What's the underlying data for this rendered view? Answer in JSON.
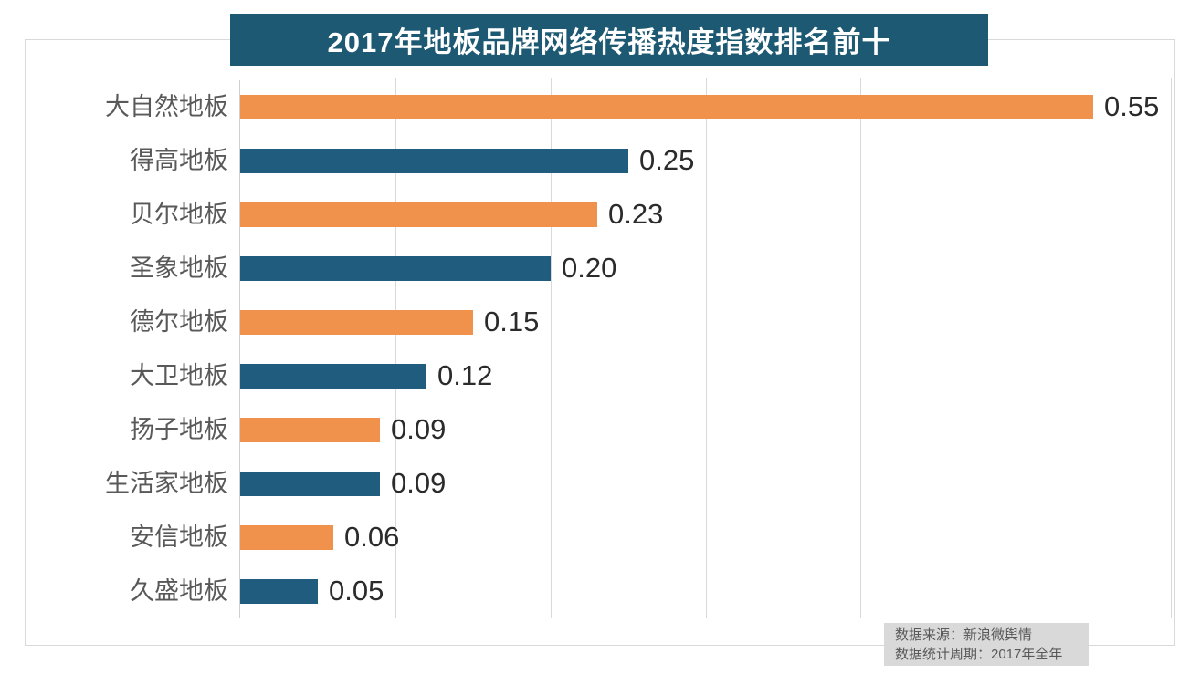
{
  "title": "2017年地板品牌网络传播热度指数排名前十",
  "source": {
    "line1": "数据来源：新浪微舆情",
    "line2": "数据统计周期：2017年全年"
  },
  "colors": {
    "banner_bg": "#1D5972",
    "title_text": "#FFFFFF",
    "bar_orange": "#F0924C",
    "bar_blue": "#1F5C7E",
    "grid_line": "#D9D9D9",
    "frame_border": "#D9D9D9",
    "category_label": "#595959",
    "value_label": "#2B2B2B",
    "source_bg": "#D9D9D9",
    "source_text": "#595959"
  },
  "chart_data": {
    "type": "bar",
    "orientation": "horizontal",
    "title": "2017年地板品牌网络传播热度指数排名前十",
    "categories": [
      "大自然地板",
      "得高地板",
      "贝尔地板",
      "圣象地板",
      "德尔地板",
      "大卫地板",
      "扬子地板",
      "生活家地板",
      "安信地板",
      "久盛地板"
    ],
    "values": [
      0.55,
      0.25,
      0.23,
      0.2,
      0.15,
      0.12,
      0.09,
      0.09,
      0.06,
      0.05
    ],
    "value_labels": [
      "0.55",
      "0.25",
      "0.23",
      "0.20",
      "0.15",
      "0.12",
      "0.09",
      "0.09",
      "0.06",
      "0.05"
    ],
    "xlabel": "",
    "ylabel": "",
    "xlim": [
      0,
      0.6
    ],
    "grid_interval": 0.1,
    "grid": true,
    "axis_tick_labels_shown": false,
    "legend_position": "none",
    "bar_color_pattern": [
      "#F0924C",
      "#1F5C7E"
    ]
  }
}
